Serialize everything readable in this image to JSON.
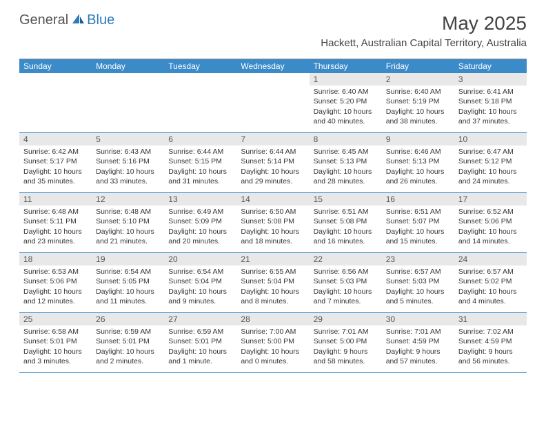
{
  "logo": {
    "part1": "General",
    "part2": "Blue"
  },
  "title": "May 2025",
  "location": "Hackett, Australian Capital Territory, Australia",
  "colors": {
    "header_bar": "#3b8bc9",
    "day_num_bg": "#e8e8e8",
    "week_border": "#3b8bc9",
    "logo_accent": "#2b7bbf",
    "text": "#333333"
  },
  "weekdays": [
    "Sunday",
    "Monday",
    "Tuesday",
    "Wednesday",
    "Thursday",
    "Friday",
    "Saturday"
  ],
  "weeks": [
    [
      {
        "n": "",
        "sunrise": "",
        "sunset": "",
        "daylight": ""
      },
      {
        "n": "",
        "sunrise": "",
        "sunset": "",
        "daylight": ""
      },
      {
        "n": "",
        "sunrise": "",
        "sunset": "",
        "daylight": ""
      },
      {
        "n": "",
        "sunrise": "",
        "sunset": "",
        "daylight": ""
      },
      {
        "n": "1",
        "sunrise": "Sunrise: 6:40 AM",
        "sunset": "Sunset: 5:20 PM",
        "daylight": "Daylight: 10 hours and 40 minutes."
      },
      {
        "n": "2",
        "sunrise": "Sunrise: 6:40 AM",
        "sunset": "Sunset: 5:19 PM",
        "daylight": "Daylight: 10 hours and 38 minutes."
      },
      {
        "n": "3",
        "sunrise": "Sunrise: 6:41 AM",
        "sunset": "Sunset: 5:18 PM",
        "daylight": "Daylight: 10 hours and 37 minutes."
      }
    ],
    [
      {
        "n": "4",
        "sunrise": "Sunrise: 6:42 AM",
        "sunset": "Sunset: 5:17 PM",
        "daylight": "Daylight: 10 hours and 35 minutes."
      },
      {
        "n": "5",
        "sunrise": "Sunrise: 6:43 AM",
        "sunset": "Sunset: 5:16 PM",
        "daylight": "Daylight: 10 hours and 33 minutes."
      },
      {
        "n": "6",
        "sunrise": "Sunrise: 6:44 AM",
        "sunset": "Sunset: 5:15 PM",
        "daylight": "Daylight: 10 hours and 31 minutes."
      },
      {
        "n": "7",
        "sunrise": "Sunrise: 6:44 AM",
        "sunset": "Sunset: 5:14 PM",
        "daylight": "Daylight: 10 hours and 29 minutes."
      },
      {
        "n": "8",
        "sunrise": "Sunrise: 6:45 AM",
        "sunset": "Sunset: 5:13 PM",
        "daylight": "Daylight: 10 hours and 28 minutes."
      },
      {
        "n": "9",
        "sunrise": "Sunrise: 6:46 AM",
        "sunset": "Sunset: 5:13 PM",
        "daylight": "Daylight: 10 hours and 26 minutes."
      },
      {
        "n": "10",
        "sunrise": "Sunrise: 6:47 AM",
        "sunset": "Sunset: 5:12 PM",
        "daylight": "Daylight: 10 hours and 24 minutes."
      }
    ],
    [
      {
        "n": "11",
        "sunrise": "Sunrise: 6:48 AM",
        "sunset": "Sunset: 5:11 PM",
        "daylight": "Daylight: 10 hours and 23 minutes."
      },
      {
        "n": "12",
        "sunrise": "Sunrise: 6:48 AM",
        "sunset": "Sunset: 5:10 PM",
        "daylight": "Daylight: 10 hours and 21 minutes."
      },
      {
        "n": "13",
        "sunrise": "Sunrise: 6:49 AM",
        "sunset": "Sunset: 5:09 PM",
        "daylight": "Daylight: 10 hours and 20 minutes."
      },
      {
        "n": "14",
        "sunrise": "Sunrise: 6:50 AM",
        "sunset": "Sunset: 5:08 PM",
        "daylight": "Daylight: 10 hours and 18 minutes."
      },
      {
        "n": "15",
        "sunrise": "Sunrise: 6:51 AM",
        "sunset": "Sunset: 5:08 PM",
        "daylight": "Daylight: 10 hours and 16 minutes."
      },
      {
        "n": "16",
        "sunrise": "Sunrise: 6:51 AM",
        "sunset": "Sunset: 5:07 PM",
        "daylight": "Daylight: 10 hours and 15 minutes."
      },
      {
        "n": "17",
        "sunrise": "Sunrise: 6:52 AM",
        "sunset": "Sunset: 5:06 PM",
        "daylight": "Daylight: 10 hours and 14 minutes."
      }
    ],
    [
      {
        "n": "18",
        "sunrise": "Sunrise: 6:53 AM",
        "sunset": "Sunset: 5:06 PM",
        "daylight": "Daylight: 10 hours and 12 minutes."
      },
      {
        "n": "19",
        "sunrise": "Sunrise: 6:54 AM",
        "sunset": "Sunset: 5:05 PM",
        "daylight": "Daylight: 10 hours and 11 minutes."
      },
      {
        "n": "20",
        "sunrise": "Sunrise: 6:54 AM",
        "sunset": "Sunset: 5:04 PM",
        "daylight": "Daylight: 10 hours and 9 minutes."
      },
      {
        "n": "21",
        "sunrise": "Sunrise: 6:55 AM",
        "sunset": "Sunset: 5:04 PM",
        "daylight": "Daylight: 10 hours and 8 minutes."
      },
      {
        "n": "22",
        "sunrise": "Sunrise: 6:56 AM",
        "sunset": "Sunset: 5:03 PM",
        "daylight": "Daylight: 10 hours and 7 minutes."
      },
      {
        "n": "23",
        "sunrise": "Sunrise: 6:57 AM",
        "sunset": "Sunset: 5:03 PM",
        "daylight": "Daylight: 10 hours and 5 minutes."
      },
      {
        "n": "24",
        "sunrise": "Sunrise: 6:57 AM",
        "sunset": "Sunset: 5:02 PM",
        "daylight": "Daylight: 10 hours and 4 minutes."
      }
    ],
    [
      {
        "n": "25",
        "sunrise": "Sunrise: 6:58 AM",
        "sunset": "Sunset: 5:01 PM",
        "daylight": "Daylight: 10 hours and 3 minutes."
      },
      {
        "n": "26",
        "sunrise": "Sunrise: 6:59 AM",
        "sunset": "Sunset: 5:01 PM",
        "daylight": "Daylight: 10 hours and 2 minutes."
      },
      {
        "n": "27",
        "sunrise": "Sunrise: 6:59 AM",
        "sunset": "Sunset: 5:01 PM",
        "daylight": "Daylight: 10 hours and 1 minute."
      },
      {
        "n": "28",
        "sunrise": "Sunrise: 7:00 AM",
        "sunset": "Sunset: 5:00 PM",
        "daylight": "Daylight: 10 hours and 0 minutes."
      },
      {
        "n": "29",
        "sunrise": "Sunrise: 7:01 AM",
        "sunset": "Sunset: 5:00 PM",
        "daylight": "Daylight: 9 hours and 58 minutes."
      },
      {
        "n": "30",
        "sunrise": "Sunrise: 7:01 AM",
        "sunset": "Sunset: 4:59 PM",
        "daylight": "Daylight: 9 hours and 57 minutes."
      },
      {
        "n": "31",
        "sunrise": "Sunrise: 7:02 AM",
        "sunset": "Sunset: 4:59 PM",
        "daylight": "Daylight: 9 hours and 56 minutes."
      }
    ]
  ]
}
